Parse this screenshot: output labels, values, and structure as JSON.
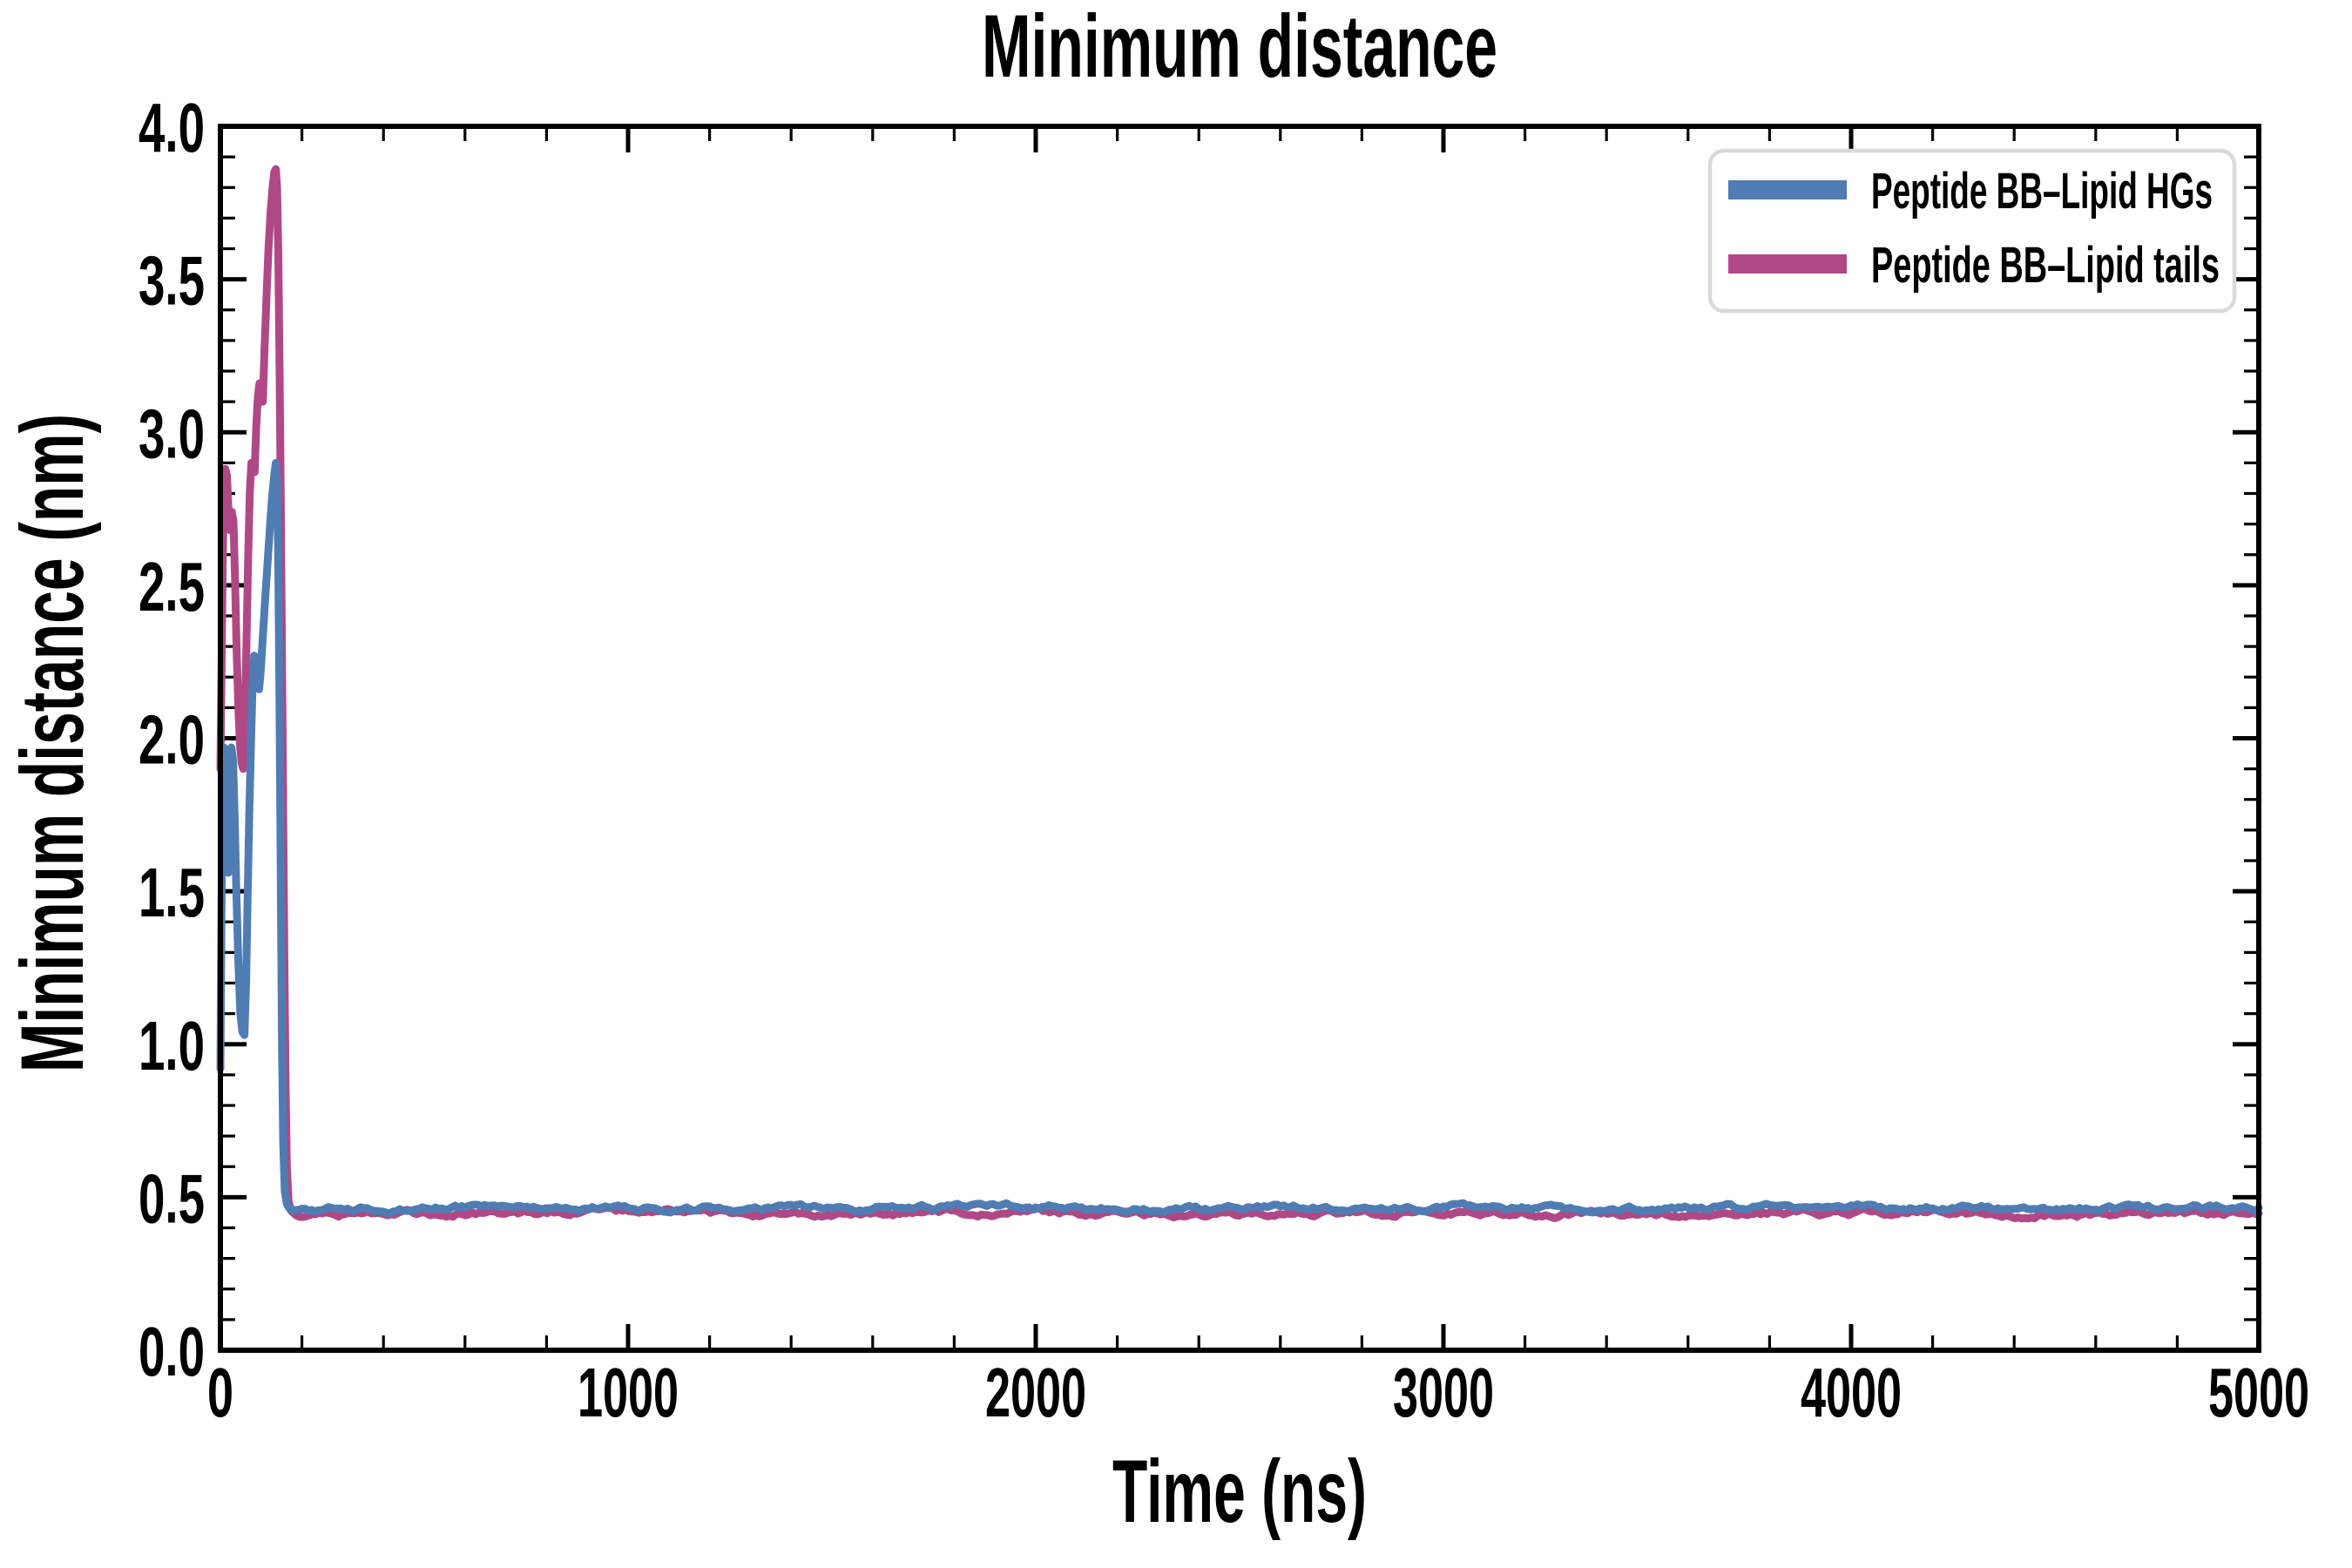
{
  "chart_data": {
    "type": "line",
    "title": "Minimum distance",
    "xlabel": "Time (ns)",
    "ylabel": "Minimum distance (nm)",
    "xlim": [
      0,
      5000
    ],
    "ylim": [
      0.0,
      4.0
    ],
    "x_major_tick_step": 1000,
    "x_minor_tick_step": 200,
    "y_major_tick_step": 0.5,
    "y_minor_tick_step": 0.1,
    "x_tick_labels": [
      "0",
      "1000",
      "2000",
      "3000",
      "4000",
      "5000"
    ],
    "y_tick_labels": [
      "0.0",
      "0.5",
      "1.0",
      "1.5",
      "2.0",
      "2.5",
      "3.0",
      "3.5",
      "4.0"
    ],
    "grid": false,
    "tick_direction": "in",
    "axis_color": "#000000",
    "line_width": 9,
    "legend": {
      "position": "upper right",
      "border_color": "#d9d9d9",
      "entries": [
        {
          "label": "Peptide BB–Lipid HGs",
          "color": "#4f7cb2"
        },
        {
          "label": "Peptide BB–Lipid tails",
          "color": "#b04886"
        }
      ]
    },
    "series": [
      {
        "name": "Peptide BB–Lipid HGs",
        "color": "#4f7cb2",
        "transient_points": [
          [
            0,
            0.92
          ],
          [
            3,
            1.5
          ],
          [
            6,
            1.95
          ],
          [
            9,
            1.97
          ],
          [
            12,
            1.88
          ],
          [
            15,
            1.68
          ],
          [
            19,
            1.56
          ],
          [
            23,
            1.84
          ],
          [
            27,
            1.97
          ],
          [
            31,
            1.93
          ],
          [
            35,
            1.74
          ],
          [
            39,
            1.5
          ],
          [
            44,
            1.27
          ],
          [
            49,
            1.1
          ],
          [
            54,
            1.04
          ],
          [
            59,
            1.03
          ],
          [
            63,
            1.2
          ],
          [
            67,
            1.5
          ],
          [
            71,
            1.76
          ],
          [
            75,
            1.98
          ],
          [
            79,
            2.18
          ],
          [
            83,
            2.27
          ],
          [
            87,
            2.24
          ],
          [
            91,
            2.18
          ],
          [
            95,
            2.16
          ],
          [
            99,
            2.22
          ],
          [
            104,
            2.33
          ],
          [
            110,
            2.46
          ],
          [
            116,
            2.58
          ],
          [
            122,
            2.7
          ],
          [
            127,
            2.79
          ],
          [
            132,
            2.86
          ],
          [
            136,
            2.9
          ],
          [
            139,
            2.84
          ],
          [
            142,
            2.56
          ],
          [
            145,
            2.1
          ],
          [
            148,
            1.55
          ],
          [
            151,
            1.0
          ],
          [
            154,
            0.68
          ],
          [
            158,
            0.52
          ],
          [
            163,
            0.478
          ],
          [
            168,
            0.466
          ]
        ],
        "plateau": {
          "t_start": 168,
          "t_end": 5000,
          "mean": 0.465,
          "noise_amp": 0.03,
          "wobble_amp": 0.003,
          "sample_step": 8,
          "seed": 7.3
        }
      },
      {
        "name": "Peptide BB–Lipid tails",
        "color": "#b04886",
        "transient_points": [
          [
            0,
            1.9
          ],
          [
            3,
            2.25
          ],
          [
            6,
            2.6
          ],
          [
            9,
            2.8
          ],
          [
            12,
            2.88
          ],
          [
            16,
            2.86
          ],
          [
            20,
            2.74
          ],
          [
            24,
            2.68
          ],
          [
            28,
            2.74
          ],
          [
            32,
            2.71
          ],
          [
            36,
            2.52
          ],
          [
            40,
            2.28
          ],
          [
            44,
            2.1
          ],
          [
            48,
            1.98
          ],
          [
            52,
            1.92
          ],
          [
            56,
            1.9
          ],
          [
            60,
            2.08
          ],
          [
            64,
            2.32
          ],
          [
            68,
            2.58
          ],
          [
            72,
            2.8
          ],
          [
            76,
            2.9
          ],
          [
            80,
            2.88
          ],
          [
            84,
            2.87
          ],
          [
            88,
            3.02
          ],
          [
            92,
            3.12
          ],
          [
            96,
            3.16
          ],
          [
            100,
            3.14
          ],
          [
            104,
            3.1
          ],
          [
            108,
            3.26
          ],
          [
            113,
            3.44
          ],
          [
            118,
            3.6
          ],
          [
            123,
            3.72
          ],
          [
            128,
            3.8
          ],
          [
            132,
            3.85
          ],
          [
            136,
            3.86
          ],
          [
            139,
            3.8
          ],
          [
            142,
            3.58
          ],
          [
            145,
            3.22
          ],
          [
            148,
            2.78
          ],
          [
            151,
            2.28
          ],
          [
            154,
            1.76
          ],
          [
            157,
            1.26
          ],
          [
            160,
            0.86
          ],
          [
            163,
            0.6
          ],
          [
            167,
            0.49
          ],
          [
            172,
            0.458
          ],
          [
            178,
            0.45
          ]
        ],
        "plateau": {
          "t_start": 178,
          "t_end": 5000,
          "mean": 0.447,
          "noise_amp": 0.03,
          "wobble_amp": 0.003,
          "sample_step": 8,
          "seed": 2.9
        }
      }
    ]
  }
}
